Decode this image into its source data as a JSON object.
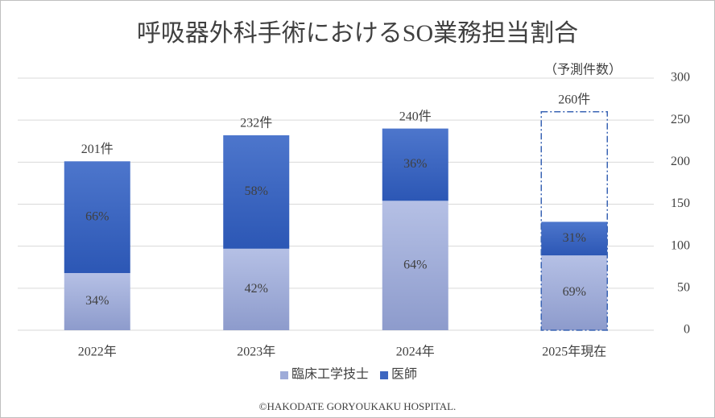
{
  "chart_data": {
    "type": "stacked-bar",
    "title": "呼吸器外科手術におけるSO業務担当割合",
    "annotation": "（予測件数）",
    "footer": "©HAKODATE GORYOUKAKU HOSPITAL.",
    "categories": [
      "2022年",
      "2023年",
      "2024年",
      "2025年現在"
    ],
    "series": [
      {
        "name": "臨床工学技士",
        "color": "#9eabd8",
        "values": [
          68,
          97,
          154,
          89
        ],
        "value_labels": [
          "34%",
          "42%",
          "64%",
          "69%"
        ]
      },
      {
        "name": "医師",
        "color": "#3d66c0",
        "values": [
          133,
          135,
          86,
          40
        ],
        "value_labels": [
          "66%",
          "58%",
          "36%",
          "31%"
        ]
      }
    ],
    "totals": {
      "values": [
        201,
        232,
        240,
        260
      ],
      "value_labels": [
        "201件",
        "232件",
        "240件",
        "260件"
      ],
      "outline_dashed": [
        false,
        false,
        false,
        true
      ],
      "outline_color": "#3a64b4"
    },
    "ylim": [
      0,
      300
    ],
    "yticks": [
      0,
      50,
      100,
      150,
      200,
      250,
      300
    ],
    "y_axis_side": "right",
    "grid": true,
    "legend": "bottom"
  }
}
